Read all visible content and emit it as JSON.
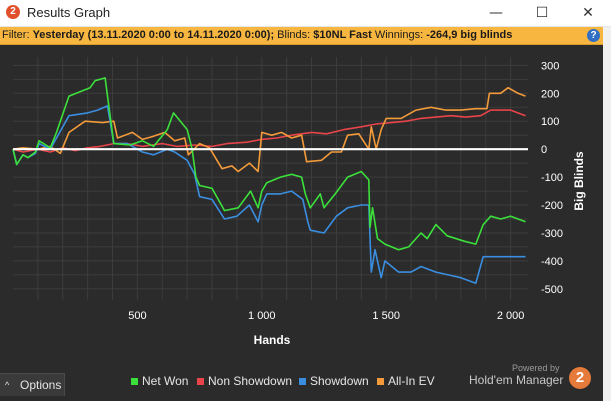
{
  "window": {
    "title": "Results Graph",
    "app_icon_text": "2",
    "minimize_glyph": "—",
    "maximize_glyph": "☐",
    "close_glyph": "✕"
  },
  "filter": {
    "prefix": "Filter: ",
    "range": "Yesterday (13.11.2020 0:00 to 14.11.2020 0:00);",
    "blinds_label": " Blinds: ",
    "blinds_value": "$10NL Fast",
    "winnings_label": " Winnings: ",
    "winnings_value": "-264,9 big blinds",
    "help_glyph": "?"
  },
  "options": {
    "chevron": "^",
    "label": "Options"
  },
  "brand": {
    "powered_by": "Powered by",
    "name": "Hold'em Manager",
    "logo_text": "2"
  },
  "colors": {
    "net_won": "#3be03b",
    "non_showdown": "#e8444a",
    "showdown": "#3a8ee0",
    "all_in_ev": "#f39a3a",
    "zero_line": "#ffffff",
    "grid": "#3d3d3d",
    "background": "#2b2b2b"
  },
  "chart_data": {
    "type": "line",
    "xlabel": "Hands",
    "ylabel": "Big Blinds",
    "xlim": [
      0,
      2070
    ],
    "ylim": [
      -540,
      330
    ],
    "x_ticks": [
      500,
      1000,
      1500,
      2000
    ],
    "x_tick_labels": [
      "500",
      "1 000",
      "1 500",
      "2 000"
    ],
    "y_ticks": [
      300,
      200,
      100,
      0,
      -100,
      -200,
      -300,
      -400,
      -500
    ],
    "y_tick_labels": [
      "300",
      "200",
      "100",
      "0",
      "-100",
      "-200",
      "-300",
      "-400",
      "-500"
    ],
    "grid": true,
    "legend_position": "bottom",
    "series": [
      {
        "name": "Net Won",
        "key": "net_won",
        "points": [
          [
            0,
            0
          ],
          [
            15,
            -55
          ],
          [
            40,
            -20
          ],
          [
            60,
            -30
          ],
          [
            90,
            -10
          ],
          [
            105,
            30
          ],
          [
            150,
            5
          ],
          [
            175,
            60
          ],
          [
            225,
            190
          ],
          [
            310,
            220
          ],
          [
            330,
            245
          ],
          [
            370,
            255
          ],
          [
            405,
            20
          ],
          [
            470,
            15
          ],
          [
            520,
            30
          ],
          [
            565,
            10
          ],
          [
            620,
            70
          ],
          [
            645,
            130
          ],
          [
            700,
            70
          ],
          [
            720,
            0
          ],
          [
            735,
            -100
          ],
          [
            750,
            -130
          ],
          [
            800,
            -140
          ],
          [
            850,
            -220
          ],
          [
            905,
            -210
          ],
          [
            955,
            -150
          ],
          [
            985,
            -210
          ],
          [
            1000,
            -150
          ],
          [
            1020,
            -120
          ],
          [
            1075,
            -100
          ],
          [
            1120,
            -90
          ],
          [
            1160,
            -100
          ],
          [
            1175,
            -160
          ],
          [
            1195,
            -210
          ],
          [
            1235,
            -160
          ],
          [
            1250,
            -210
          ],
          [
            1295,
            -160
          ],
          [
            1345,
            -100
          ],
          [
            1400,
            -80
          ],
          [
            1430,
            -110
          ],
          [
            1435,
            -280
          ],
          [
            1445,
            -210
          ],
          [
            1465,
            -320
          ],
          [
            1495,
            -340
          ],
          [
            1550,
            -360
          ],
          [
            1590,
            -350
          ],
          [
            1640,
            -300
          ],
          [
            1665,
            -320
          ],
          [
            1700,
            -270
          ],
          [
            1745,
            -310
          ],
          [
            1815,
            -330
          ],
          [
            1860,
            -340
          ],
          [
            1890,
            -270
          ],
          [
            1920,
            -240
          ],
          [
            1960,
            -250
          ],
          [
            2000,
            -240
          ],
          [
            2060,
            -260
          ]
        ]
      },
      {
        "name": "Non Showdown",
        "key": "non_showdown",
        "points": [
          [
            0,
            0
          ],
          [
            40,
            -10
          ],
          [
            100,
            0
          ],
          [
            150,
            -10
          ],
          [
            200,
            5
          ],
          [
            250,
            -5
          ],
          [
            300,
            5
          ],
          [
            350,
            10
          ],
          [
            405,
            20
          ],
          [
            460,
            20
          ],
          [
            520,
            10
          ],
          [
            600,
            20
          ],
          [
            660,
            10
          ],
          [
            730,
            15
          ],
          [
            800,
            10
          ],
          [
            860,
            20
          ],
          [
            940,
            25
          ],
          [
            1000,
            35
          ],
          [
            1060,
            40
          ],
          [
            1120,
            50
          ],
          [
            1200,
            60
          ],
          [
            1260,
            55
          ],
          [
            1330,
            70
          ],
          [
            1400,
            80
          ],
          [
            1460,
            90
          ],
          [
            1520,
            95
          ],
          [
            1580,
            100
          ],
          [
            1640,
            110
          ],
          [
            1700,
            115
          ],
          [
            1760,
            120
          ],
          [
            1820,
            115
          ],
          [
            1880,
            120
          ],
          [
            1920,
            140
          ],
          [
            1960,
            140
          ],
          [
            2000,
            140
          ],
          [
            2060,
            120
          ]
        ]
      },
      {
        "name": "Showdown",
        "key": "showdown",
        "points": [
          [
            0,
            0
          ],
          [
            15,
            -55
          ],
          [
            40,
            -20
          ],
          [
            60,
            -30
          ],
          [
            90,
            -15
          ],
          [
            105,
            20
          ],
          [
            150,
            0
          ],
          [
            175,
            40
          ],
          [
            225,
            120
          ],
          [
            300,
            130
          ],
          [
            340,
            140
          ],
          [
            380,
            155
          ],
          [
            405,
            20
          ],
          [
            460,
            20
          ],
          [
            520,
            -10
          ],
          [
            565,
            -20
          ],
          [
            620,
            0
          ],
          [
            650,
            -10
          ],
          [
            700,
            -40
          ],
          [
            730,
            -90
          ],
          [
            750,
            -170
          ],
          [
            800,
            -180
          ],
          [
            850,
            -250
          ],
          [
            900,
            -240
          ],
          [
            950,
            -200
          ],
          [
            985,
            -260
          ],
          [
            1000,
            -200
          ],
          [
            1020,
            -160
          ],
          [
            1075,
            -160
          ],
          [
            1120,
            -150
          ],
          [
            1165,
            -180
          ],
          [
            1185,
            -260
          ],
          [
            1195,
            -290
          ],
          [
            1250,
            -300
          ],
          [
            1300,
            -240
          ],
          [
            1345,
            -210
          ],
          [
            1400,
            -200
          ],
          [
            1430,
            -200
          ],
          [
            1440,
            -440
          ],
          [
            1455,
            -360
          ],
          [
            1480,
            -460
          ],
          [
            1495,
            -400
          ],
          [
            1550,
            -440
          ],
          [
            1600,
            -440
          ],
          [
            1640,
            -420
          ],
          [
            1700,
            -440
          ],
          [
            1750,
            -450
          ],
          [
            1800,
            -460
          ],
          [
            1860,
            -480
          ],
          [
            1890,
            -385
          ],
          [
            1940,
            -385
          ],
          [
            2060,
            -385
          ]
        ]
      },
      {
        "name": "All-In EV",
        "key": "all_in_ev",
        "points": [
          [
            0,
            0
          ],
          [
            40,
            5
          ],
          [
            100,
            0
          ],
          [
            150,
            10
          ],
          [
            190,
            -15
          ],
          [
            225,
            60
          ],
          [
            290,
            100
          ],
          [
            360,
            95
          ],
          [
            405,
            100
          ],
          [
            420,
            40
          ],
          [
            480,
            60
          ],
          [
            520,
            35
          ],
          [
            560,
            45
          ],
          [
            610,
            60
          ],
          [
            650,
            30
          ],
          [
            690,
            40
          ],
          [
            705,
            -20
          ],
          [
            750,
            20
          ],
          [
            790,
            5
          ],
          [
            840,
            -70
          ],
          [
            880,
            -60
          ],
          [
            905,
            -80
          ],
          [
            950,
            -50
          ],
          [
            985,
            -80
          ],
          [
            1000,
            60
          ],
          [
            1040,
            50
          ],
          [
            1080,
            60
          ],
          [
            1120,
            40
          ],
          [
            1160,
            50
          ],
          [
            1180,
            -45
          ],
          [
            1240,
            -40
          ],
          [
            1280,
            -10
          ],
          [
            1320,
            -10
          ],
          [
            1345,
            50
          ],
          [
            1390,
            55
          ],
          [
            1430,
            0
          ],
          [
            1440,
            80
          ],
          [
            1460,
            0
          ],
          [
            1480,
            70
          ],
          [
            1500,
            110
          ],
          [
            1560,
            110
          ],
          [
            1620,
            140
          ],
          [
            1680,
            150
          ],
          [
            1740,
            140
          ],
          [
            1800,
            140
          ],
          [
            1860,
            145
          ],
          [
            1905,
            145
          ],
          [
            1915,
            200
          ],
          [
            1960,
            200
          ],
          [
            1990,
            220
          ],
          [
            2030,
            200
          ],
          [
            2060,
            190
          ]
        ]
      }
    ]
  }
}
